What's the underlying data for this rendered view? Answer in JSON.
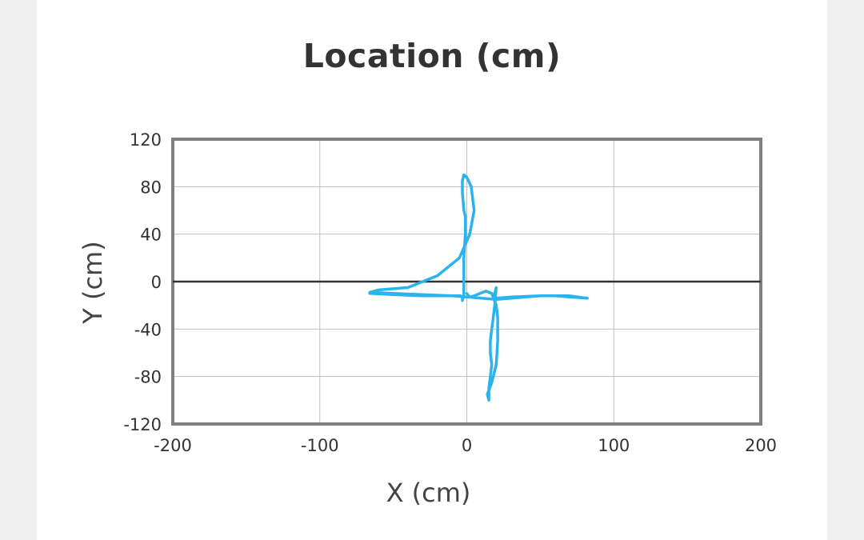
{
  "chart_data": {
    "type": "line",
    "title": "Location (cm)",
    "xlabel": "X (cm)",
    "ylabel": "Y (cm)",
    "xlim": [
      -200,
      200
    ],
    "ylim": [
      -120,
      120
    ],
    "xticks": [
      -200,
      -100,
      0,
      100,
      200
    ],
    "yticks": [
      120,
      80,
      40,
      0,
      -40,
      -80,
      -120
    ],
    "grid": true,
    "zero_line": true,
    "series_color": "#2bb3ee",
    "series": [
      {
        "x": [
          -66,
          -50,
          -30,
          -10,
          -4,
          -3,
          -3,
          -2,
          -2,
          -2,
          -2,
          -2,
          -1,
          -1,
          -2,
          -3,
          -3,
          -2,
          0,
          3,
          5,
          2,
          -5,
          -20,
          -40,
          -60,
          -66,
          -50,
          -30,
          -10,
          0,
          10,
          20,
          30,
          40,
          50,
          60,
          70,
          82,
          70,
          50,
          30,
          20,
          19,
          19,
          20,
          19,
          18,
          17,
          16,
          16,
          17,
          16,
          15,
          15,
          14,
          17,
          20,
          21,
          21,
          20,
          17,
          13,
          9,
          5,
          2,
          0
        ],
        "y": [
          -10,
          -11,
          -12,
          -12,
          -12,
          -14,
          -16,
          -12,
          -5,
          0,
          5,
          20,
          40,
          55,
          60,
          75,
          85,
          90,
          88,
          80,
          60,
          40,
          20,
          5,
          -5,
          -7,
          -9,
          -10,
          -11,
          -12,
          -13,
          -14,
          -15,
          -14,
          -13,
          -12,
          -12,
          -13,
          -14,
          -12,
          -12,
          -13,
          -14,
          -13,
          -10,
          -5,
          -20,
          -30,
          -40,
          -50,
          -60,
          -70,
          -80,
          -90,
          -100,
          -95,
          -85,
          -70,
          -50,
          -30,
          -20,
          -10,
          -8,
          -10,
          -12,
          -13,
          -10
        ]
      }
    ]
  }
}
